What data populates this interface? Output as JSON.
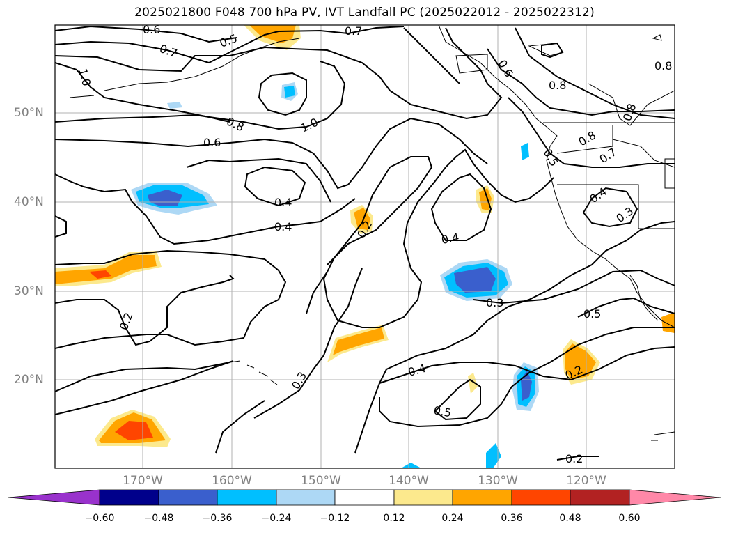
{
  "title": "2025021800 F048 700 hPa PV, IVT Landfall PC (2025022012 - 2025022312)",
  "map": {
    "lat_labels": [
      "50°N",
      "40°N",
      "30°N",
      "20°N"
    ],
    "lon_labels": [
      "170°W",
      "160°W",
      "150°W",
      "140°W",
      "130°W",
      "120°W"
    ],
    "grid": true
  },
  "contour_labels": [
    "0.6",
    "0.7",
    "0.5",
    "0.7",
    "1.0",
    "0.8",
    "1.0",
    "0.6",
    "0.8",
    "0.8",
    "0.6",
    "0.5",
    "0.8",
    "0.7",
    "0.4",
    "0.3",
    "0.4",
    "0.4",
    "0.2",
    "0.4",
    "0.3",
    "0.5",
    "0.2",
    "0.4",
    "0.3",
    "0.5",
    "0.2",
    "0.2",
    "0.8"
  ],
  "colorbar": {
    "extend": "both",
    "ticks": [
      "−0.60",
      "−0.48",
      "−0.36",
      "−0.24",
      "−0.12",
      "0.12",
      "0.24",
      "0.36",
      "0.48",
      "0.60"
    ],
    "colors": [
      "#9932cc",
      "#00008b",
      "#3a5fcd",
      "#00bfff",
      "#add8f5",
      "#ffffff",
      "#fce98d",
      "#ffa500",
      "#ff4500",
      "#b22222",
      "#ff88a8"
    ]
  }
}
